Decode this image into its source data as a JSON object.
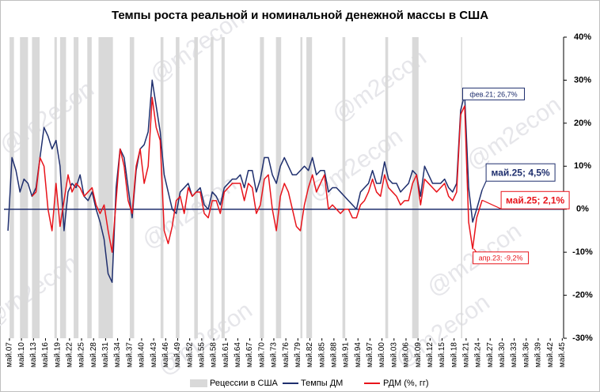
{
  "chart_data": {
    "type": "line",
    "title": "Темпы роста реальной и номинальной денежной массы в США",
    "watermark": "@m2econ",
    "x": [
      1907,
      1908,
      1909,
      1910,
      1911,
      1912,
      1913,
      1914,
      1915,
      1916,
      1917,
      1918,
      1919,
      1920,
      1921,
      1922,
      1923,
      1924,
      1925,
      1926,
      1927,
      1928,
      1929,
      1930,
      1931,
      1932,
      1933,
      1934,
      1935,
      1936,
      1937,
      1938,
      1939,
      1940,
      1941,
      1942,
      1943,
      1944,
      1945,
      1946,
      1947,
      1948,
      1949,
      1950,
      1951,
      1952,
      1953,
      1954,
      1955,
      1956,
      1957,
      1958,
      1959,
      1960,
      1961,
      1962,
      1963,
      1964,
      1965,
      1966,
      1967,
      1968,
      1969,
      1970,
      1971,
      1972,
      1973,
      1974,
      1975,
      1976,
      1977,
      1978,
      1979,
      1980,
      1981,
      1982,
      1983,
      1984,
      1985,
      1986,
      1987,
      1988,
      1989,
      1990,
      1991,
      1992,
      1993,
      1994,
      1995,
      1996,
      1997,
      1998,
      1999,
      2000,
      2001,
      2002,
      2003,
      2004,
      2005,
      2006,
      2007,
      2008,
      2009,
      2010,
      2011,
      2012,
      2013,
      2014,
      2015,
      2016,
      2017,
      2018,
      2019,
      2020,
      2021,
      2022,
      2023,
      2024,
      2025.37
    ],
    "series": [
      {
        "name": "Темпы ДМ",
        "color": "#1f2f6e",
        "values": [
          -5,
          12,
          9,
          4,
          7,
          6,
          3,
          5,
          12,
          19,
          17,
          14,
          16,
          10,
          -5,
          4,
          6,
          5,
          8,
          3,
          2,
          4,
          0,
          -3,
          -7,
          -15,
          -17,
          5,
          14,
          12,
          5,
          -2,
          9,
          14,
          15,
          18,
          30,
          24,
          18,
          8,
          4,
          0,
          -1,
          4,
          5,
          6,
          3,
          4,
          5,
          1,
          0,
          4,
          3,
          1,
          5,
          6,
          7,
          7,
          8,
          5,
          9,
          9,
          4,
          7,
          12,
          12,
          8,
          6,
          10,
          12,
          10,
          8,
          8,
          9,
          10,
          9,
          12,
          8,
          9,
          9,
          4,
          5,
          5,
          4,
          3,
          2,
          1,
          0,
          4,
          5,
          6,
          9,
          6,
          6,
          11,
          7,
          6,
          6,
          4,
          5,
          6,
          9,
          8,
          3,
          10,
          8,
          6,
          6,
          6,
          7,
          5,
          4,
          6,
          23,
          26.7,
          5,
          -3,
          0,
          4.5
        ]
      },
      {
        "name": "РДМ (%, гг)",
        "color": "#e8141b",
        "values": [
          null,
          null,
          null,
          null,
          null,
          null,
          3,
          4,
          12,
          10,
          0,
          -5,
          6,
          -4,
          2,
          8,
          4,
          6,
          5,
          3,
          4,
          5,
          1,
          -1,
          1,
          -5,
          -10,
          2,
          14,
          10,
          2,
          -1,
          10,
          14,
          6,
          10,
          26,
          19,
          16,
          -5,
          -8,
          -4,
          2,
          3,
          -1,
          5,
          3,
          4,
          4,
          -1,
          -2,
          2,
          2,
          -1,
          4,
          5,
          6,
          6,
          6,
          2,
          6,
          5,
          -1,
          1,
          7,
          8,
          0,
          -5,
          3,
          6,
          4,
          0,
          -4,
          -5,
          1,
          5,
          8,
          4,
          6,
          8,
          0,
          1,
          0,
          -1,
          0,
          0,
          -2,
          -2,
          1,
          2,
          4,
          7,
          4,
          3,
          8,
          5,
          4,
          3,
          1,
          2,
          2,
          6,
          8,
          1,
          7,
          6,
          5,
          4,
          5,
          6,
          3,
          2,
          4,
          22,
          24,
          -3,
          -9.2,
          -2,
          2.1
        ]
      }
    ],
    "recession_label": "Рецессии в США",
    "recession_color": "#d9d9d9",
    "recessions": [
      [
        1907.4,
        1908.5
      ],
      [
        1910.0,
        1912.0
      ],
      [
        1913.0,
        1914.9
      ],
      [
        1918.6,
        1919.2
      ],
      [
        1920.0,
        1921.5
      ],
      [
        1923.4,
        1924.6
      ],
      [
        1926.8,
        1927.9
      ],
      [
        1929.6,
        1933.2
      ],
      [
        1937.4,
        1938.5
      ],
      [
        1945.1,
        1945.8
      ],
      [
        1948.9,
        1949.8
      ],
      [
        1953.5,
        1954.4
      ],
      [
        1957.6,
        1958.3
      ],
      [
        1960.3,
        1961.1
      ],
      [
        1969.9,
        1970.9
      ],
      [
        1973.9,
        1975.2
      ],
      [
        1980.0,
        1980.5
      ],
      [
        1981.5,
        1982.9
      ],
      [
        1990.5,
        1991.2
      ],
      [
        2001.2,
        2001.9
      ],
      [
        2007.9,
        2009.5
      ],
      [
        2020.1,
        2020.4
      ]
    ],
    "annotations": [
      {
        "text": "фев.21; 26,7%",
        "x": 2021.1,
        "y": 26.7,
        "series": 0
      },
      {
        "text": "май.25; 4,5%",
        "x": 2025.37,
        "y": 4.5,
        "series": 0
      },
      {
        "text": "май.25; 2,1%",
        "x": 2025.37,
        "y": 2.1,
        "series": 1
      },
      {
        "text": "апр.23; -9,2%",
        "x": 2023.29,
        "y": -9.2,
        "series": 1
      }
    ],
    "xlim": [
      1906,
      2045.7
    ],
    "xticks": [
      {
        "value": 1907.37,
        "label": "май.07"
      },
      {
        "value": 1910.37,
        "label": "май.10"
      },
      {
        "value": 1913.37,
        "label": "май.13"
      },
      {
        "value": 1916.37,
        "label": "май.16"
      },
      {
        "value": 1919.37,
        "label": "май.19"
      },
      {
        "value": 1922.37,
        "label": "май.22"
      },
      {
        "value": 1925.37,
        "label": "май.25"
      },
      {
        "value": 1928.37,
        "label": "май.28"
      },
      {
        "value": 1931.37,
        "label": "май.31"
      },
      {
        "value": 1934.37,
        "label": "май.34"
      },
      {
        "value": 1937.37,
        "label": "май.37"
      },
      {
        "value": 1940.37,
        "label": "май.40"
      },
      {
        "value": 1943.37,
        "label": "май.43"
      },
      {
        "value": 1946.37,
        "label": "май.46"
      },
      {
        "value": 1949.37,
        "label": "май.49"
      },
      {
        "value": 1952.37,
        "label": "май.52"
      },
      {
        "value": 1955.37,
        "label": "май.55"
      },
      {
        "value": 1958.37,
        "label": "май.58"
      },
      {
        "value": 1961.37,
        "label": "май.61"
      },
      {
        "value": 1964.37,
        "label": "май.64"
      },
      {
        "value": 1967.37,
        "label": "май.67"
      },
      {
        "value": 1970.37,
        "label": "май.70"
      },
      {
        "value": 1973.37,
        "label": "май.73"
      },
      {
        "value": 1976.37,
        "label": "май.76"
      },
      {
        "value": 1979.37,
        "label": "май.79"
      },
      {
        "value": 1982.37,
        "label": "май.82"
      },
      {
        "value": 1985.37,
        "label": "май.85"
      },
      {
        "value": 1988.37,
        "label": "май.88"
      },
      {
        "value": 1991.37,
        "label": "май.91"
      },
      {
        "value": 1994.37,
        "label": "май.94"
      },
      {
        "value": 1997.37,
        "label": "май.97"
      },
      {
        "value": 2000.37,
        "label": "май.00"
      },
      {
        "value": 2003.37,
        "label": "май.03"
      },
      {
        "value": 2006.37,
        "label": "май.06"
      },
      {
        "value": 2009.37,
        "label": "май.09"
      },
      {
        "value": 2012.37,
        "label": "май.12"
      },
      {
        "value": 2015.37,
        "label": "май.15"
      },
      {
        "value": 2018.37,
        "label": "май.18"
      },
      {
        "value": 2021.37,
        "label": "май.21"
      },
      {
        "value": 2024.37,
        "label": "май.24"
      },
      {
        "value": 2027.37,
        "label": "май.27"
      },
      {
        "value": 2030.37,
        "label": "май.30"
      },
      {
        "value": 2033.37,
        "label": "май.33"
      },
      {
        "value": 2036.37,
        "label": "май.36"
      },
      {
        "value": 2039.37,
        "label": "май.39"
      },
      {
        "value": 2042.37,
        "label": "май.42"
      },
      {
        "value": 2045.37,
        "label": "май.45"
      }
    ],
    "ylim": [
      -30,
      40
    ],
    "yticks": [
      {
        "value": -30,
        "label": "-30%"
      },
      {
        "value": -20,
        "label": "-20%"
      },
      {
        "value": -10,
        "label": "-10%"
      },
      {
        "value": 0,
        "label": "0%"
      },
      {
        "value": 10,
        "label": "10%"
      },
      {
        "value": 20,
        "label": "20%"
      },
      {
        "value": 30,
        "label": "30%"
      },
      {
        "value": 40,
        "label": "40%"
      }
    ]
  }
}
